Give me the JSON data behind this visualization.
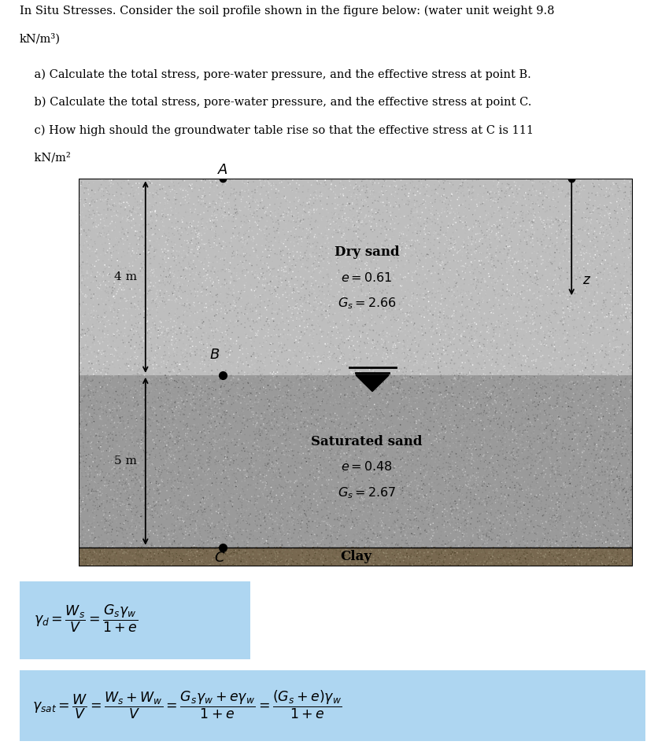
{
  "title_line1": "In Situ Stresses. Consider the soil profile shown in the figure below: (water unit weight 9.8",
  "title_line2": "kN/m³)",
  "sub_a": "    a) Calculate the total stress, pore-water pressure, and the effective stress at point B.",
  "sub_b": "    b) Calculate the total stress, pore-water pressure, and the effective stress at point C.",
  "sub_c": "    c) How high should the groundwater table rise so that the effective stress at C is 111",
  "sub_c2": "    kN/m²",
  "layer_dry_color": "#c0c0c0",
  "layer_sat_color": "#a0a0a0",
  "layer_clay_color": "#7a7060",
  "box1_color": "#aed6f1",
  "box2_color": "#aed6f1"
}
